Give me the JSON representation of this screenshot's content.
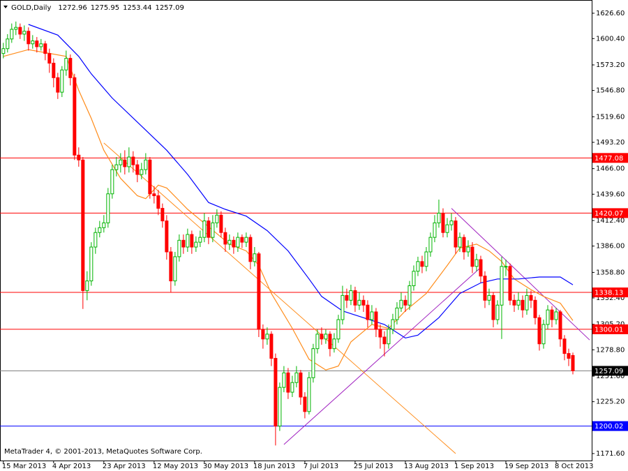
{
  "chart_data": {
    "type": "candlestick",
    "symbol": "GOLD,Daily",
    "footer": "MetaTrader 4, © 2001-2013, MetaQuotes Software Corp.",
    "up_color": "#00b400",
    "down_color": "#ff0000",
    "xlim": [
      -0.8,
      140.5
    ],
    "ylim": [
      1164.4,
      1634.5
    ],
    "xticks": [
      {
        "value": 0,
        "label": "15 Mar 2013"
      },
      {
        "value": 12,
        "label": "4 Apr 2013"
      },
      {
        "value": 24,
        "label": "23 Apr 2013"
      },
      {
        "value": 36,
        "label": "12 May 2013"
      },
      {
        "value": 48,
        "label": "30 May 2013"
      },
      {
        "value": 60,
        "label": "18 Jun 2013"
      },
      {
        "value": 72,
        "label": "7 Jul 2013"
      },
      {
        "value": 84,
        "label": "25 Jul 2013"
      },
      {
        "value": 96,
        "label": "13 Aug 2013"
      },
      {
        "value": 108,
        "label": "1 Sep 2013"
      },
      {
        "value": 120,
        "label": "19 Sep 2013"
      },
      {
        "value": 132,
        "label": "8 Oct 2013"
      }
    ],
    "yticks": [
      {
        "value": 1626.6,
        "label": "1626.60"
      },
      {
        "value": 1600.4,
        "label": "1600.40"
      },
      {
        "value": 1573.2,
        "label": "1573.20"
      },
      {
        "value": 1546.8,
        "label": "1546.80"
      },
      {
        "value": 1519.6,
        "label": "1519.60"
      },
      {
        "value": 1493.2,
        "label": "1493.20"
      },
      {
        "value": 1466,
        "label": "1466.00"
      },
      {
        "value": 1439.6,
        "label": "1439.60"
      },
      {
        "value": 1412.4,
        "label": "1412.40"
      },
      {
        "value": 1386,
        "label": "1386.00"
      },
      {
        "value": 1358.8,
        "label": "1358.80"
      },
      {
        "value": 1332.4,
        "label": "1332.40"
      },
      {
        "value": 1305.2,
        "label": "1305.20"
      },
      {
        "value": 1278.8,
        "label": "1278.80"
      },
      {
        "value": 1251.6,
        "label": "1251.60"
      },
      {
        "value": 1225.2,
        "label": "1225.20"
      },
      {
        "value": 1171.6,
        "label": "1171.60"
      }
    ],
    "candles": {
      "open": [
        1585,
        1590,
        1600,
        1610,
        1612,
        1605,
        1608,
        1595,
        1598,
        1592,
        1595,
        1585,
        1575,
        1560,
        1545,
        1568,
        1580,
        1560,
        1480,
        1475,
        1340,
        1350,
        1385,
        1400,
        1405,
        1410,
        1440,
        1465,
        1470,
        1475,
        1468,
        1478,
        1470,
        1460,
        1465,
        1475,
        1440,
        1438,
        1425,
        1412,
        1380,
        1350,
        1375,
        1392,
        1385,
        1398,
        1385,
        1390,
        1395,
        1412,
        1395,
        1410,
        1418,
        1400,
        1388,
        1392,
        1385,
        1395,
        1390,
        1395,
        1370,
        1378,
        1300,
        1290,
        1295,
        1270,
        1200,
        1240,
        1255,
        1235,
        1245,
        1255,
        1230,
        1215,
        1250,
        1280,
        1295,
        1290,
        1295,
        1280,
        1290,
        1310,
        1335,
        1330,
        1340,
        1325,
        1330,
        1325,
        1310,
        1318,
        1300,
        1292,
        1285,
        1300,
        1310,
        1322,
        1330,
        1325,
        1345,
        1360,
        1370,
        1365,
        1380,
        1395,
        1410,
        1420,
        1400,
        1408,
        1412,
        1385,
        1395,
        1380,
        1385,
        1365,
        1372,
        1355,
        1330,
        1335,
        1310,
        1325,
        1365,
        1365,
        1330,
        1325,
        1330,
        1320,
        1335,
        1330,
        1312,
        1285,
        1305,
        1320,
        1310,
        1318,
        1290,
        1275,
        1272.96
      ],
      "high": [
        1596,
        1605,
        1616,
        1618,
        1616,
        1614,
        1612,
        1604,
        1602,
        1600,
        1598,
        1590,
        1580,
        1565,
        1572,
        1588,
        1584,
        1564,
        1488,
        1478,
        1360,
        1390,
        1405,
        1412,
        1418,
        1446,
        1470,
        1478,
        1482,
        1485,
        1488,
        1484,
        1475,
        1472,
        1482,
        1478,
        1448,
        1444,
        1430,
        1418,
        1385,
        1380,
        1398,
        1398,
        1404,
        1402,
        1396,
        1402,
        1420,
        1416,
        1418,
        1424,
        1422,
        1405,
        1398,
        1396,
        1400,
        1398,
        1400,
        1398,
        1385,
        1380,
        1305,
        1302,
        1298,
        1275,
        1245,
        1262,
        1260,
        1252,
        1262,
        1258,
        1235,
        1256,
        1285,
        1300,
        1302,
        1300,
        1298,
        1296,
        1315,
        1345,
        1342,
        1346,
        1344,
        1338,
        1335,
        1330,
        1325,
        1322,
        1305,
        1298,
        1305,
        1316,
        1328,
        1338,
        1335,
        1350,
        1366,
        1375,
        1376,
        1385,
        1400,
        1418,
        1434,
        1425,
        1415,
        1420,
        1416,
        1400,
        1398,
        1392,
        1390,
        1378,
        1376,
        1360,
        1342,
        1338,
        1330,
        1375,
        1372,
        1368,
        1336,
        1338,
        1335,
        1342,
        1340,
        1334,
        1315,
        1310,
        1325,
        1324,
        1322,
        1320,
        1294,
        1280,
        1275.95
      ],
      "low": [
        1580,
        1586,
        1596,
        1604,
        1600,
        1598,
        1588,
        1590,
        1586,
        1588,
        1578,
        1565,
        1550,
        1538,
        1540,
        1562,
        1552,
        1475,
        1468,
        1321,
        1330,
        1345,
        1378,
        1395,
        1400,
        1405,
        1435,
        1458,
        1462,
        1460,
        1462,
        1462,
        1452,
        1455,
        1460,
        1435,
        1430,
        1418,
        1405,
        1372,
        1338,
        1345,
        1370,
        1378,
        1380,
        1378,
        1380,
        1385,
        1390,
        1388,
        1390,
        1405,
        1395,
        1380,
        1382,
        1378,
        1380,
        1384,
        1385,
        1362,
        1365,
        1292,
        1280,
        1284,
        1262,
        1180,
        1195,
        1235,
        1228,
        1230,
        1240,
        1222,
        1208,
        1212,
        1245,
        1275,
        1284,
        1285,
        1272,
        1276,
        1286,
        1305,
        1322,
        1325,
        1318,
        1320,
        1318,
        1302,
        1305,
        1292,
        1280,
        1272,
        1280,
        1295,
        1305,
        1318,
        1318,
        1320,
        1340,
        1355,
        1358,
        1360,
        1375,
        1390,
        1405,
        1395,
        1395,
        1402,
        1378,
        1380,
        1372,
        1375,
        1358,
        1360,
        1348,
        1322,
        1325,
        1302,
        1305,
        1290,
        1355,
        1325,
        1318,
        1320,
        1312,
        1315,
        1322,
        1305,
        1278,
        1280,
        1300,
        1302,
        1305,
        1282,
        1268,
        1262,
        1253.44
      ],
      "close": [
        1590,
        1600,
        1610,
        1612,
        1605,
        1608,
        1595,
        1598,
        1592,
        1595,
        1585,
        1575,
        1560,
        1545,
        1568,
        1580,
        1560,
        1480,
        1475,
        1340,
        1350,
        1385,
        1400,
        1405,
        1410,
        1440,
        1465,
        1470,
        1475,
        1468,
        1478,
        1470,
        1460,
        1465,
        1475,
        1440,
        1438,
        1425,
        1412,
        1380,
        1350,
        1375,
        1392,
        1385,
        1398,
        1385,
        1390,
        1395,
        1412,
        1395,
        1410,
        1418,
        1400,
        1388,
        1392,
        1385,
        1395,
        1390,
        1395,
        1370,
        1378,
        1300,
        1290,
        1295,
        1270,
        1200,
        1240,
        1255,
        1235,
        1245,
        1255,
        1230,
        1215,
        1250,
        1280,
        1295,
        1290,
        1295,
        1280,
        1290,
        1310,
        1335,
        1330,
        1340,
        1325,
        1330,
        1325,
        1310,
        1318,
        1300,
        1292,
        1285,
        1300,
        1310,
        1322,
        1330,
        1325,
        1345,
        1360,
        1370,
        1365,
        1380,
        1395,
        1410,
        1420,
        1400,
        1408,
        1412,
        1385,
        1395,
        1380,
        1385,
        1365,
        1372,
        1355,
        1330,
        1335,
        1310,
        1325,
        1365,
        1365,
        1330,
        1325,
        1330,
        1320,
        1335,
        1330,
        1312,
        1285,
        1305,
        1320,
        1310,
        1318,
        1290,
        1275,
        1270,
        1257.09
      ]
    },
    "moving_averages": [
      {
        "color": "#ff8c1a",
        "x": [
          0,
          6,
          15,
          18,
          21,
          24,
          28,
          32,
          34,
          37,
          39,
          44,
          49,
          54,
          58,
          61,
          64,
          69,
          73,
          77,
          80,
          83,
          88,
          92,
          96,
          101,
          106,
          109,
          113,
          116,
          119,
          122,
          126,
          129,
          133,
          136
        ],
        "values": [
          1582,
          1589,
          1582,
          1547,
          1518,
          1485,
          1456,
          1438,
          1435,
          1449,
          1446,
          1424,
          1406,
          1388,
          1381,
          1366,
          1337,
          1301,
          1269,
          1258,
          1262,
          1287,
          1305,
          1301,
          1319,
          1337,
          1366,
          1384,
          1388,
          1381,
          1370,
          1352,
          1341,
          1334,
          1327,
          1309
        ]
      },
      {
        "color": "#0000ff",
        "x": [
          6,
          13,
          18,
          21,
          26,
          33,
          39,
          44,
          49,
          53,
          58,
          63,
          68,
          73,
          76,
          81,
          86,
          91,
          96,
          99,
          104,
          109,
          114,
          118,
          123,
          128,
          133,
          136
        ],
        "values": [
          1615,
          1604,
          1582,
          1564,
          1539,
          1510,
          1485,
          1460,
          1431,
          1424,
          1417,
          1402,
          1381,
          1352,
          1334,
          1319,
          1312,
          1305,
          1291,
          1294,
          1312,
          1337,
          1348,
          1352,
          1352,
          1354,
          1354,
          1346
        ]
      }
    ],
    "trendlines": [
      {
        "color": "#a020c0",
        "x": [
          67,
          114
        ],
        "values": [
          1181,
          1364
        ]
      },
      {
        "color": "#a020c0",
        "x": [
          107,
          140
        ],
        "values": [
          1425,
          1289
        ]
      },
      {
        "color": "#ff8c1a",
        "x": [
          24,
          108
        ],
        "values": [
          1492.5,
          1171.6
        ]
      }
    ],
    "levels": [
      {
        "value": 1477.08,
        "color": "#ff0000"
      },
      {
        "value": 1420.07,
        "color": "#ff0000"
      },
      {
        "value": 1338.13,
        "color": "#ff0000"
      },
      {
        "value": 1300.01,
        "color": "#ff0000"
      },
      {
        "value": 1257.09,
        "color": "#808080",
        "label_color": "#000000"
      },
      {
        "value": 1200.02,
        "color": "#0000ff"
      }
    ]
  }
}
